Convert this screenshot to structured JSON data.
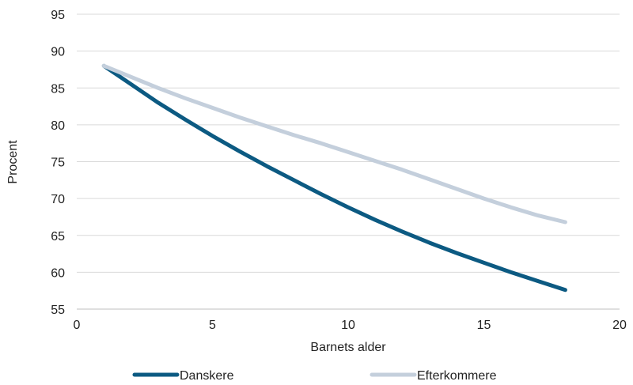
{
  "chart_data": {
    "type": "line",
    "title": "",
    "xlabel": "Barnets alder",
    "ylabel": "Procent",
    "xlim": [
      0,
      20
    ],
    "ylim": [
      55,
      95
    ],
    "xticks": [
      0,
      5,
      10,
      15,
      20
    ],
    "yticks": [
      55,
      60,
      65,
      70,
      75,
      80,
      85,
      90,
      95
    ],
    "grid": "horizontal",
    "legend_position": "bottom",
    "x": [
      1,
      2,
      3,
      4,
      5,
      6,
      7,
      8,
      9,
      10,
      11,
      12,
      13,
      14,
      15,
      16,
      17,
      18
    ],
    "series": [
      {
        "name": "Danskere",
        "color": "#0c5a82",
        "values": [
          88.0,
          85.5,
          83.0,
          80.7,
          78.5,
          76.4,
          74.4,
          72.5,
          70.6,
          68.8,
          67.1,
          65.5,
          64.0,
          62.6,
          61.3,
          60.0,
          58.8,
          57.6
        ]
      },
      {
        "name": "Efterkommere",
        "color": "#c4cfdc",
        "values": [
          88.0,
          86.5,
          85.0,
          83.6,
          82.3,
          81.0,
          79.8,
          78.6,
          77.5,
          76.3,
          75.1,
          73.9,
          72.6,
          71.3,
          70.0,
          68.8,
          67.7,
          66.8
        ]
      }
    ]
  }
}
